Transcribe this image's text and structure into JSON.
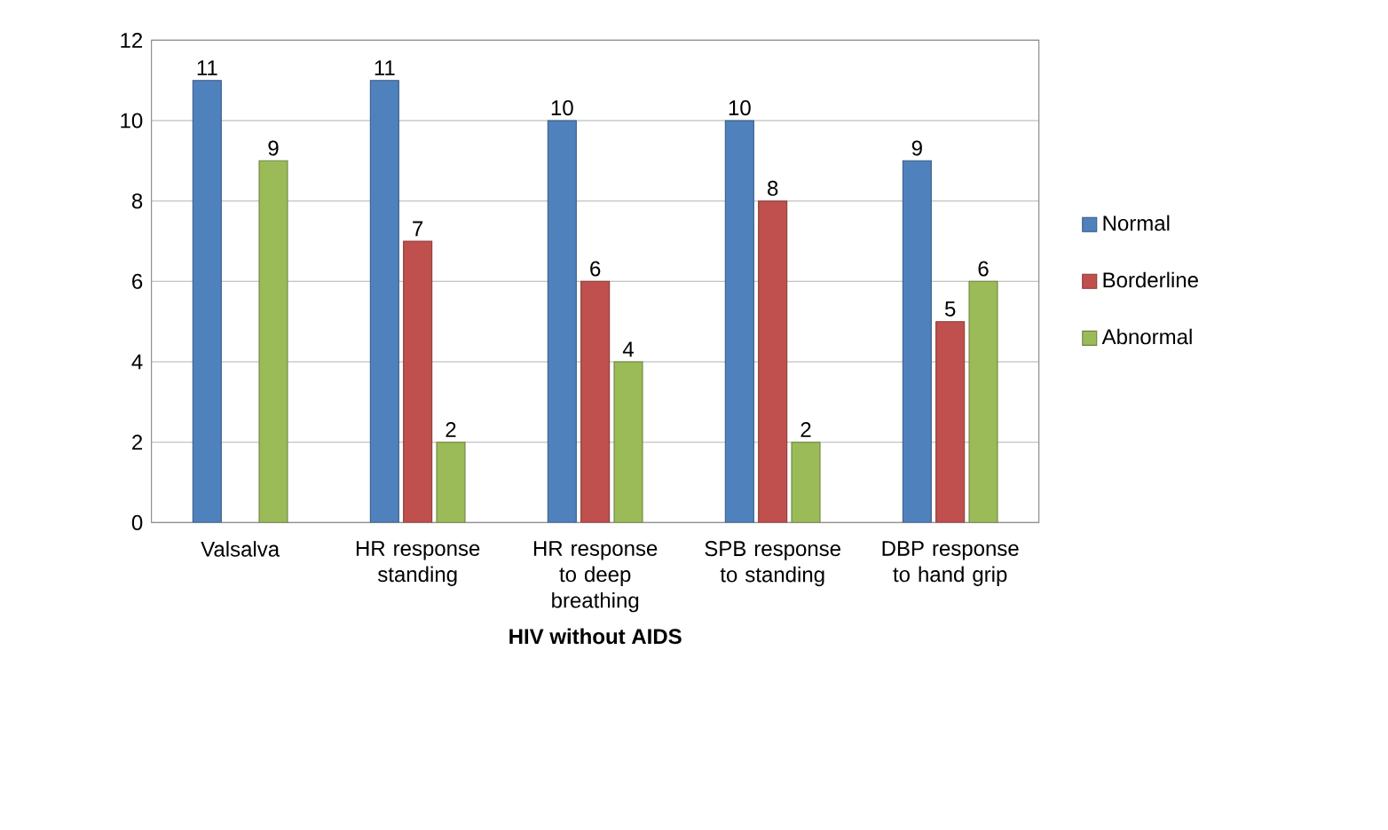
{
  "chart_data": {
    "type": "bar",
    "xlabel": "HIV without AIDS",
    "categories": [
      "Valsalva",
      "HR response standing",
      "HR response to deep breathing",
      "SPB response to standing",
      "DBP response to hand grip"
    ],
    "series": [
      {
        "name": "Normal",
        "color": "#4f81bd",
        "values": [
          11,
          11,
          10,
          10,
          9
        ]
      },
      {
        "name": "Borderline",
        "color": "#c0504d",
        "values": [
          null,
          7,
          6,
          8,
          5
        ]
      },
      {
        "name": "Abnormal",
        "color": "#9bbb59",
        "values": [
          9,
          2,
          4,
          2,
          6
        ]
      }
    ],
    "ylim": [
      0,
      12
    ],
    "yticks": [
      0,
      2,
      4,
      6,
      8,
      10,
      12
    ],
    "grid": "y",
    "legend": "right",
    "data_labels": true
  }
}
